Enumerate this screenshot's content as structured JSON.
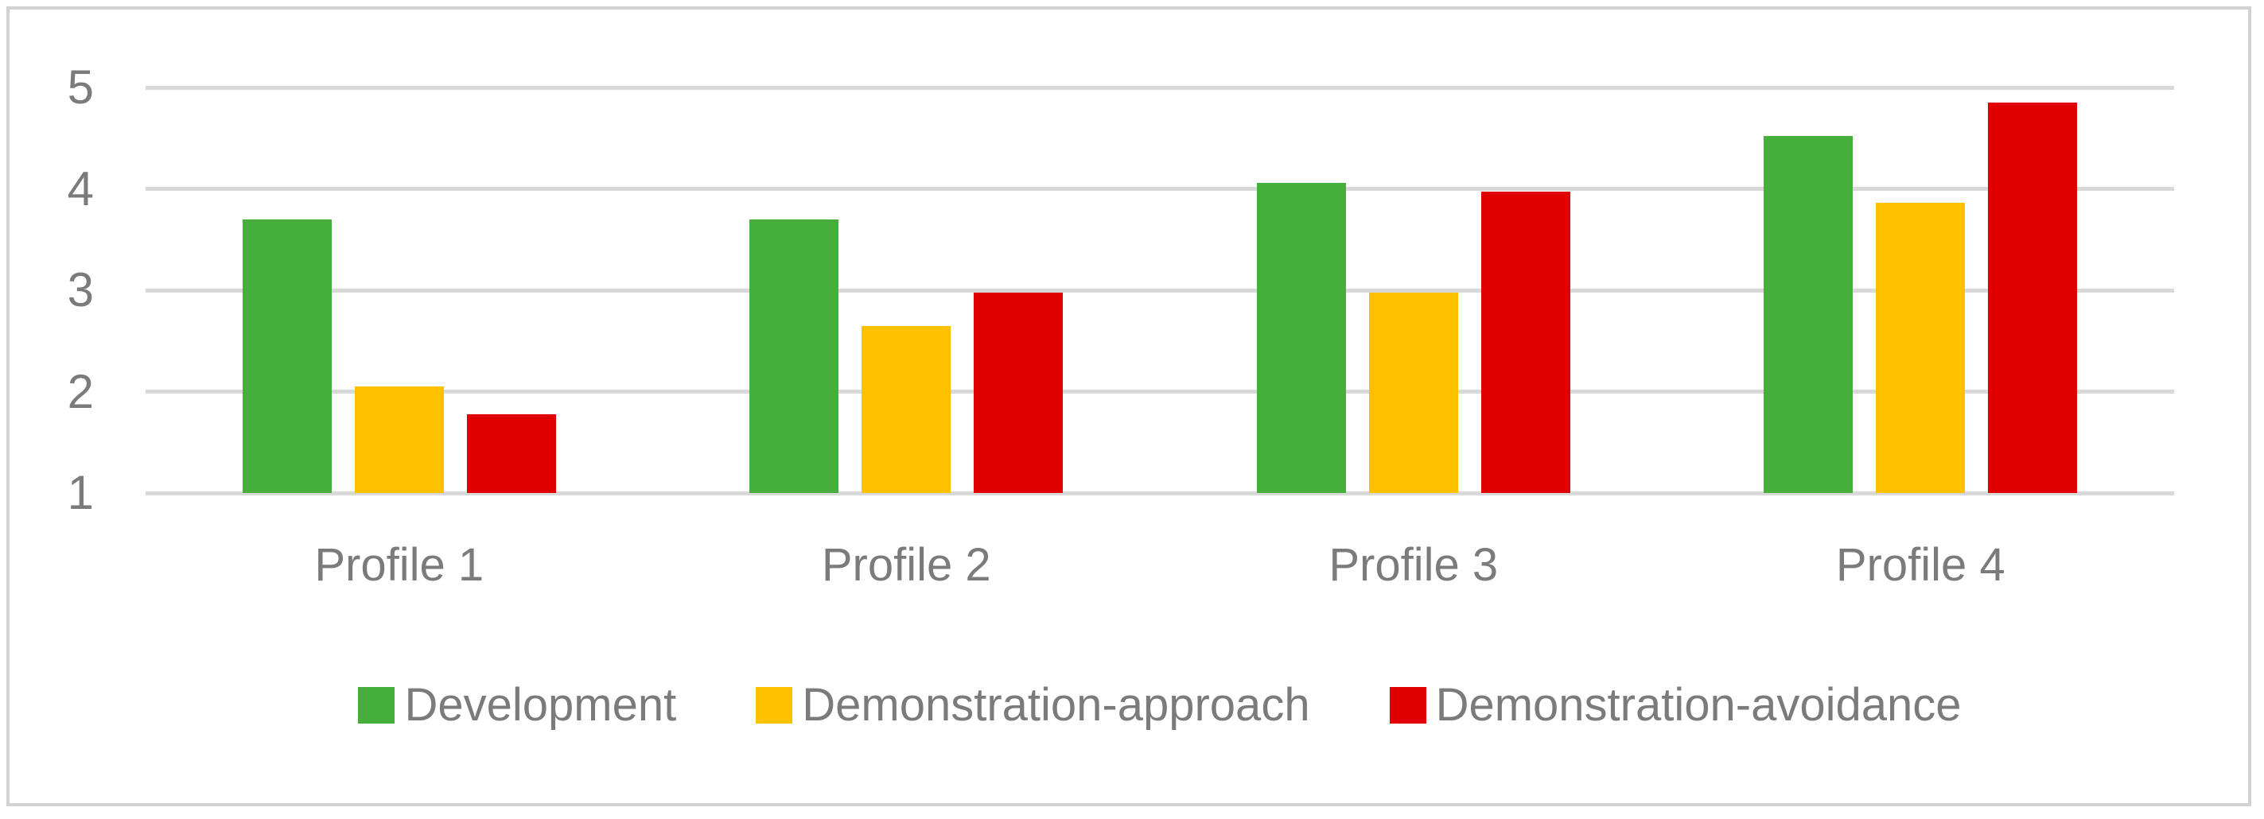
{
  "chart_data": {
    "type": "bar",
    "title": "",
    "categories": [
      "Profile 1",
      "Profile 2",
      "Profile 3",
      "Profile 4"
    ],
    "series": [
      {
        "name": "Development",
        "color": "#46af3c",
        "values": [
          3.7,
          3.7,
          4.06,
          4.52
        ]
      },
      {
        "name": "Demonstration-approach",
        "color": "#ffc000",
        "values": [
          2.05,
          2.65,
          2.98,
          3.86
        ]
      },
      {
        "name": "Demonstration-avoidance",
        "color": "#e00000",
        "values": [
          1.78,
          2.98,
          3.97,
          4.85
        ]
      }
    ],
    "y_axis": {
      "min": 1,
      "max": 5,
      "step": 1,
      "tick_labels": [
        "1",
        "2",
        "3",
        "4",
        "5"
      ]
    },
    "xlabel": "",
    "ylabel": "",
    "grid": true,
    "legend_position": "bottom",
    "legend_entries": [
      "Development",
      "Demonstration-approach",
      "Demonstration-avoidance"
    ]
  },
  "colors": {
    "grid": "#d9d9d9",
    "frame": "#d2d2d2",
    "text": "#7b7b7b",
    "background": "#ffffff"
  }
}
